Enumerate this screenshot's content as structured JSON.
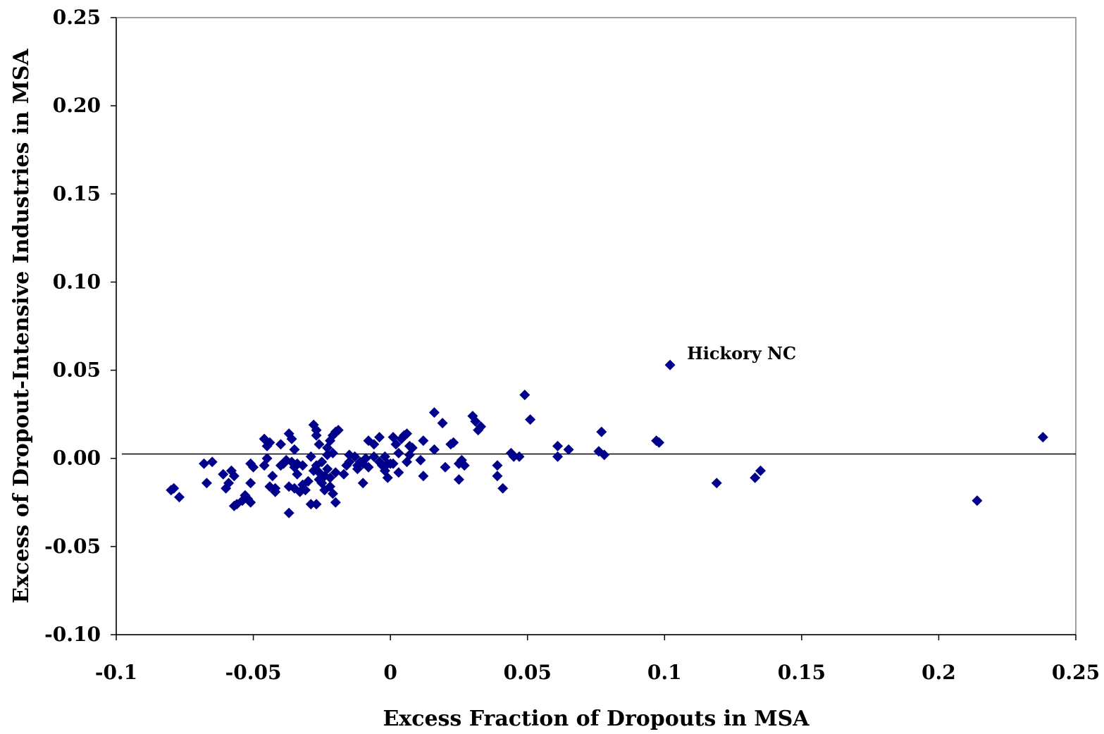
{
  "chart_data": {
    "type": "scatter",
    "xlabel": "Excess Fraction of Dropouts in MSA",
    "ylabel": "Excess of Dropout-Intensive Industries in MSA",
    "xlim": [
      -0.1,
      0.25
    ],
    "ylim": [
      -0.1,
      0.25
    ],
    "x_ticks": [
      -0.1,
      -0.05,
      0,
      0.05,
      0.1,
      0.15,
      0.2,
      0.25
    ],
    "x_tick_labels": [
      "-0.1",
      "-0.05",
      "0",
      "0.05",
      "0.1",
      "0.15",
      "0.2",
      "0.25"
    ],
    "y_ticks": [
      -0.1,
      -0.05,
      0,
      0.05,
      0.1,
      0.15,
      0.2,
      0.25
    ],
    "y_tick_labels": [
      "-0.10",
      "-0.05",
      "0.00",
      "0.05",
      "0.10",
      "0.15",
      "0.20",
      "0.25"
    ],
    "grid": false,
    "legend": "none",
    "marker": "diamond",
    "marker_color": "#00008B",
    "reference_line": {
      "type": "horizontal",
      "y": 0.0025,
      "color": "#000000"
    },
    "annotation": {
      "text": "Hickory NC",
      "x": 0.102,
      "y": 0.053
    },
    "points": [
      {
        "x": -0.08,
        "y": -0.018
      },
      {
        "x": -0.079,
        "y": -0.017
      },
      {
        "x": -0.077,
        "y": -0.022
      },
      {
        "x": -0.068,
        "y": -0.003
      },
      {
        "x": -0.067,
        "y": -0.014
      },
      {
        "x": -0.065,
        "y": -0.002
      },
      {
        "x": -0.061,
        "y": -0.009
      },
      {
        "x": -0.06,
        "y": -0.017
      },
      {
        "x": -0.059,
        "y": -0.014
      },
      {
        "x": -0.058,
        "y": -0.007
      },
      {
        "x": -0.057,
        "y": -0.01
      },
      {
        "x": -0.057,
        "y": -0.027
      },
      {
        "x": -0.056,
        "y": -0.026
      },
      {
        "x": -0.054,
        "y": -0.024
      },
      {
        "x": -0.053,
        "y": -0.021
      },
      {
        "x": -0.052,
        "y": -0.023
      },
      {
        "x": -0.051,
        "y": -0.025
      },
      {
        "x": -0.051,
        "y": -0.014
      },
      {
        "x": -0.051,
        "y": -0.003
      },
      {
        "x": -0.05,
        "y": -0.005
      },
      {
        "x": -0.046,
        "y": 0.011
      },
      {
        "x": -0.046,
        "y": -0.004
      },
      {
        "x": -0.045,
        "y": 0.0
      },
      {
        "x": -0.045,
        "y": 0.007
      },
      {
        "x": -0.044,
        "y": 0.009
      },
      {
        "x": -0.044,
        "y": -0.016
      },
      {
        "x": -0.043,
        "y": -0.01
      },
      {
        "x": -0.042,
        "y": -0.017
      },
      {
        "x": -0.042,
        "y": -0.019
      },
      {
        "x": -0.04,
        "y": 0.008
      },
      {
        "x": -0.04,
        "y": -0.004
      },
      {
        "x": -0.039,
        "y": -0.003
      },
      {
        "x": -0.038,
        "y": -0.001
      },
      {
        "x": -0.037,
        "y": 0.014
      },
      {
        "x": -0.037,
        "y": -0.031
      },
      {
        "x": -0.037,
        "y": -0.016
      },
      {
        "x": -0.036,
        "y": -0.002
      },
      {
        "x": -0.036,
        "y": 0.011
      },
      {
        "x": -0.035,
        "y": 0.005
      },
      {
        "x": -0.035,
        "y": -0.005
      },
      {
        "x": -0.035,
        "y": -0.017
      },
      {
        "x": -0.034,
        "y": -0.009
      },
      {
        "x": -0.034,
        "y": -0.003
      },
      {
        "x": -0.033,
        "y": -0.019
      },
      {
        "x": -0.032,
        "y": -0.015
      },
      {
        "x": -0.032,
        "y": -0.004
      },
      {
        "x": -0.031,
        "y": -0.018
      },
      {
        "x": -0.03,
        "y": -0.013
      },
      {
        "x": -0.029,
        "y": -0.026
      },
      {
        "x": -0.029,
        "y": 0.001
      },
      {
        "x": -0.028,
        "y": 0.019
      },
      {
        "x": -0.028,
        "y": -0.007
      },
      {
        "x": -0.027,
        "y": 0.016
      },
      {
        "x": -0.027,
        "y": 0.013
      },
      {
        "x": -0.027,
        "y": -0.004
      },
      {
        "x": -0.027,
        "y": -0.026
      },
      {
        "x": -0.026,
        "y": -0.012
      },
      {
        "x": -0.026,
        "y": -0.008
      },
      {
        "x": -0.026,
        "y": 0.008
      },
      {
        "x": -0.025,
        "y": -0.002
      },
      {
        "x": -0.025,
        "y": -0.014
      },
      {
        "x": -0.024,
        "y": -0.018
      },
      {
        "x": -0.024,
        "y": -0.01
      },
      {
        "x": -0.023,
        "y": 0.002
      },
      {
        "x": -0.023,
        "y": -0.006
      },
      {
        "x": -0.023,
        "y": 0.006
      },
      {
        "x": -0.022,
        "y": -0.011
      },
      {
        "x": -0.022,
        "y": -0.016
      },
      {
        "x": -0.022,
        "y": 0.01
      },
      {
        "x": -0.021,
        "y": -0.02
      },
      {
        "x": -0.021,
        "y": 0.003
      },
      {
        "x": -0.021,
        "y": 0.013
      },
      {
        "x": -0.02,
        "y": -0.008
      },
      {
        "x": -0.02,
        "y": -0.025
      },
      {
        "x": -0.02,
        "y": 0.015
      },
      {
        "x": -0.019,
        "y": 0.016
      },
      {
        "x": -0.017,
        "y": -0.009
      },
      {
        "x": -0.016,
        "y": -0.004
      },
      {
        "x": -0.015,
        "y": 0.002
      },
      {
        "x": -0.015,
        "y": -0.002
      },
      {
        "x": -0.013,
        "y": 0.001
      },
      {
        "x": -0.012,
        "y": -0.004
      },
      {
        "x": -0.012,
        "y": -0.006
      },
      {
        "x": -0.011,
        "y": -0.002
      },
      {
        "x": -0.01,
        "y": -0.014
      },
      {
        "x": -0.01,
        "y": -0.003
      },
      {
        "x": -0.009,
        "y": 0.0
      },
      {
        "x": -0.008,
        "y": -0.005
      },
      {
        "x": -0.008,
        "y": 0.01
      },
      {
        "x": -0.006,
        "y": 0.008
      },
      {
        "x": -0.006,
        "y": 0.001
      },
      {
        "x": -0.004,
        "y": -0.002
      },
      {
        "x": -0.004,
        "y": 0.012
      },
      {
        "x": -0.003,
        "y": -0.004
      },
      {
        "x": -0.002,
        "y": -0.007
      },
      {
        "x": -0.002,
        "y": 0.001
      },
      {
        "x": -0.001,
        "y": -0.011
      },
      {
        "x": -0.001,
        "y": -0.003
      },
      {
        "x": 0.0,
        "y": -0.003
      },
      {
        "x": 0.001,
        "y": 0.012
      },
      {
        "x": 0.001,
        "y": -0.003
      },
      {
        "x": 0.002,
        "y": 0.008
      },
      {
        "x": 0.003,
        "y": -0.008
      },
      {
        "x": 0.003,
        "y": 0.003
      },
      {
        "x": 0.004,
        "y": 0.011
      },
      {
        "x": 0.005,
        "y": 0.013
      },
      {
        "x": 0.006,
        "y": 0.014
      },
      {
        "x": 0.006,
        "y": -0.002
      },
      {
        "x": 0.007,
        "y": 0.002
      },
      {
        "x": 0.007,
        "y": 0.007
      },
      {
        "x": 0.008,
        "y": 0.006
      },
      {
        "x": 0.011,
        "y": -0.001
      },
      {
        "x": 0.012,
        "y": 0.01
      },
      {
        "x": 0.012,
        "y": -0.01
      },
      {
        "x": 0.016,
        "y": 0.026
      },
      {
        "x": 0.016,
        "y": 0.005
      },
      {
        "x": 0.019,
        "y": 0.02
      },
      {
        "x": 0.02,
        "y": -0.005
      },
      {
        "x": 0.022,
        "y": 0.008
      },
      {
        "x": 0.023,
        "y": 0.009
      },
      {
        "x": 0.025,
        "y": -0.003
      },
      {
        "x": 0.025,
        "y": -0.012
      },
      {
        "x": 0.026,
        "y": -0.001
      },
      {
        "x": 0.027,
        "y": -0.004
      },
      {
        "x": 0.03,
        "y": 0.024
      },
      {
        "x": 0.031,
        "y": 0.021
      },
      {
        "x": 0.032,
        "y": 0.016
      },
      {
        "x": 0.033,
        "y": 0.018
      },
      {
        "x": 0.039,
        "y": -0.004
      },
      {
        "x": 0.039,
        "y": -0.01
      },
      {
        "x": 0.041,
        "y": -0.017
      },
      {
        "x": 0.044,
        "y": 0.003
      },
      {
        "x": 0.045,
        "y": 0.001
      },
      {
        "x": 0.047,
        "y": 0.001
      },
      {
        "x": 0.049,
        "y": 0.036
      },
      {
        "x": 0.051,
        "y": 0.022
      },
      {
        "x": 0.061,
        "y": 0.001
      },
      {
        "x": 0.061,
        "y": 0.007
      },
      {
        "x": 0.065,
        "y": 0.005
      },
      {
        "x": 0.076,
        "y": 0.004
      },
      {
        "x": 0.077,
        "y": 0.015
      },
      {
        "x": 0.078,
        "y": 0.002
      },
      {
        "x": 0.097,
        "y": 0.01
      },
      {
        "x": 0.098,
        "y": 0.009
      },
      {
        "x": 0.102,
        "y": 0.053
      },
      {
        "x": 0.119,
        "y": -0.014
      },
      {
        "x": 0.133,
        "y": -0.011
      },
      {
        "x": 0.135,
        "y": -0.007
      },
      {
        "x": 0.214,
        "y": -0.024
      },
      {
        "x": 0.238,
        "y": 0.012
      }
    ]
  }
}
